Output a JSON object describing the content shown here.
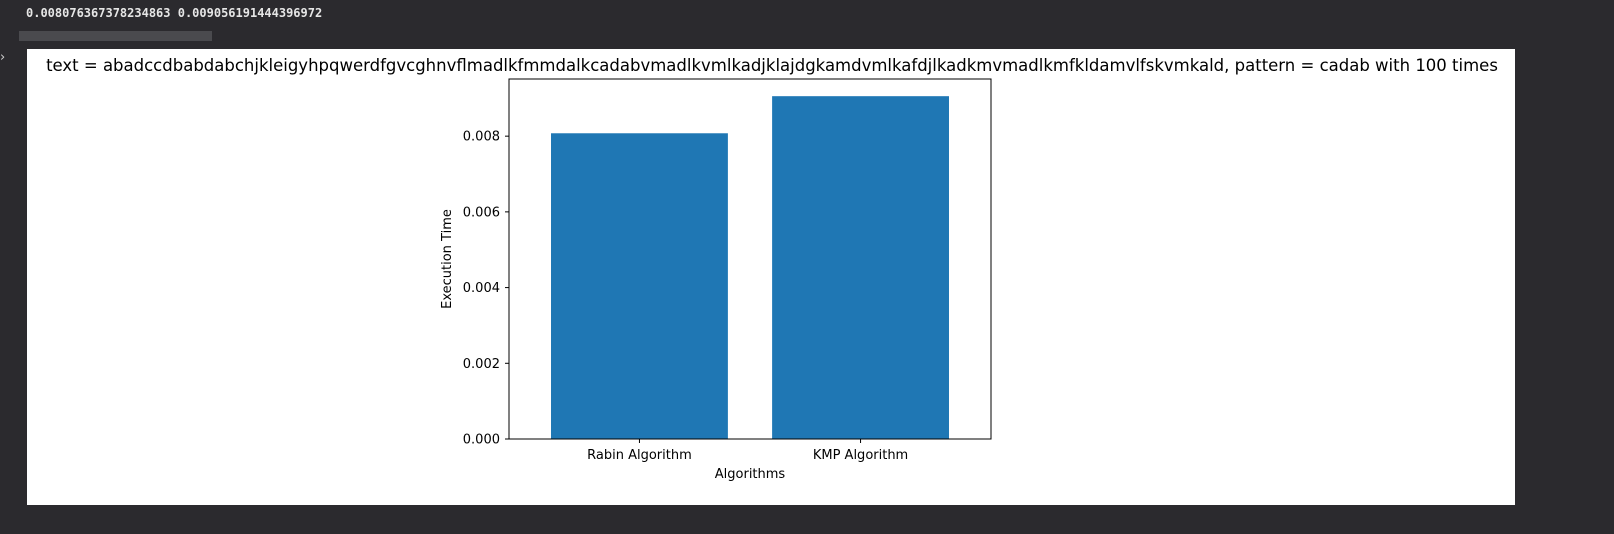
{
  "output": {
    "values_line": "0.008076367378234863 0.009056191444396972"
  },
  "chart_data": {
    "type": "bar",
    "title": "text = abadccdbabdabchjkleigyhpqwerdfgvcghnvflmadlkfmmdalkcadabvmadlkvmlkadjklajdgkamdvmlkafdjlkadkmvmadlkmfkldamvlfskvmkald, pattern = cadab  with 100 times",
    "categories": [
      "Rabin Algorithm",
      "KMP Algorithm"
    ],
    "values": [
      0.008076367378234863,
      0.009056191444396972
    ],
    "xlabel": "Algorithms",
    "ylabel": "Execution Time",
    "ylim": [
      0,
      0.00951
    ],
    "yticks": [
      0.0,
      0.002,
      0.004,
      0.006,
      0.008
    ],
    "ytick_labels": [
      "0.000",
      "0.002",
      "0.004",
      "0.006",
      "0.008"
    ],
    "bar_color": "#1f77b4",
    "grid": false
  }
}
